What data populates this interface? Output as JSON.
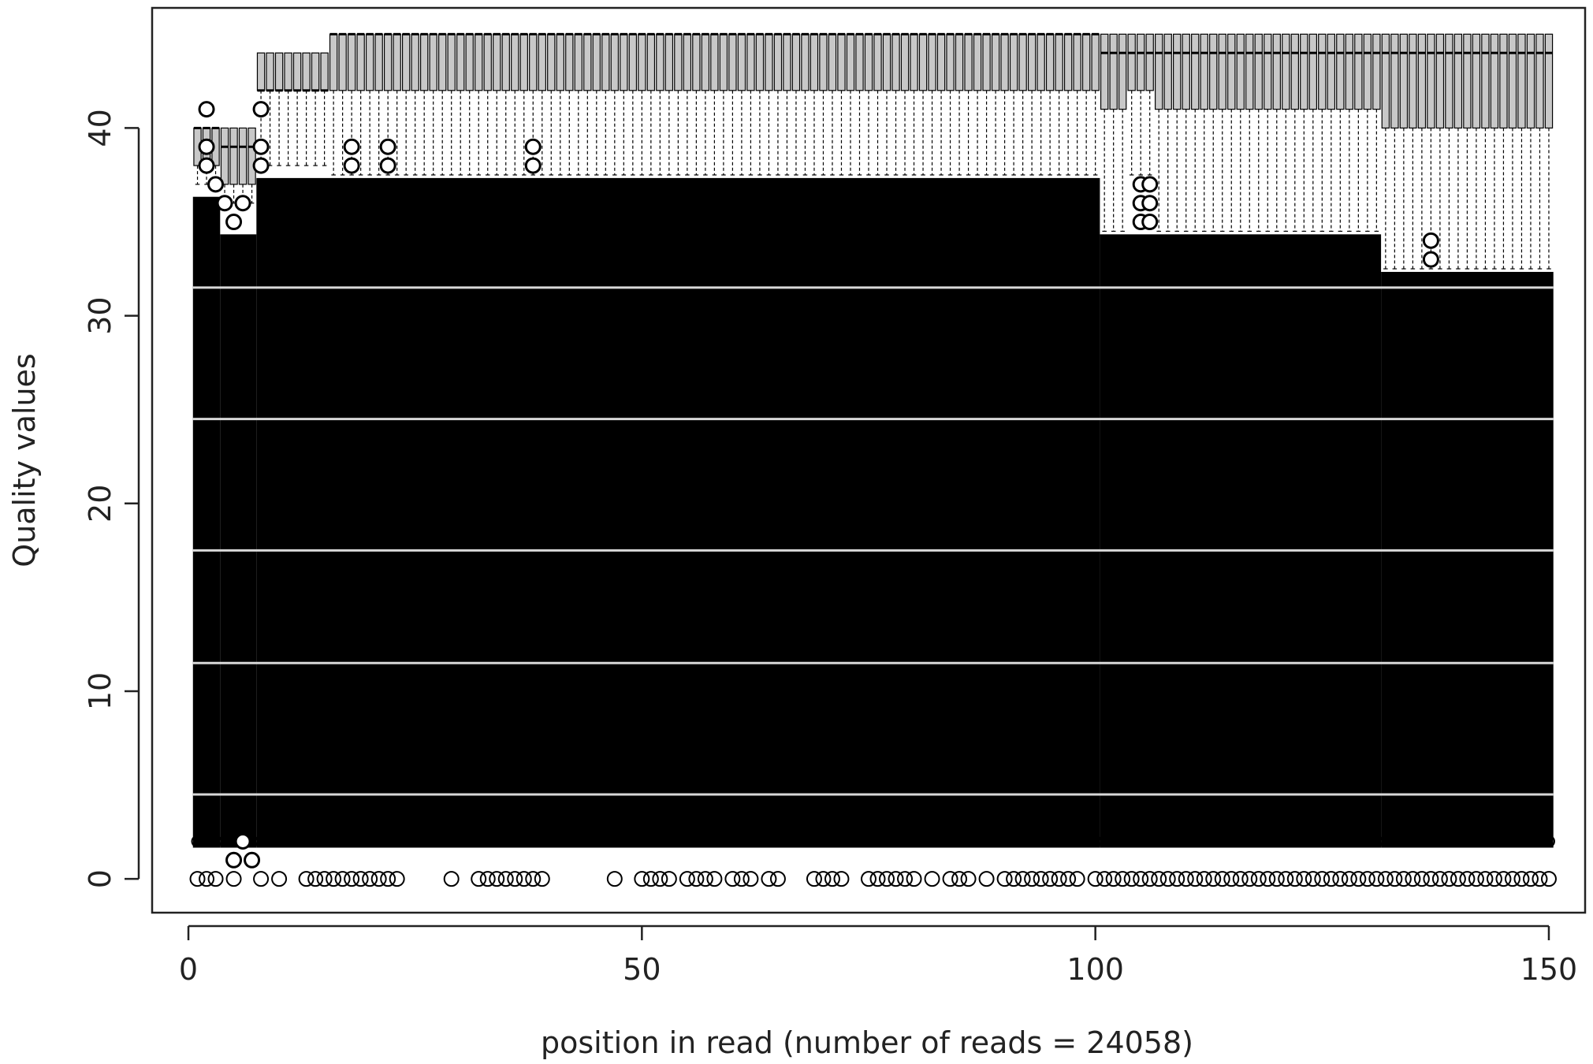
{
  "chart_data": {
    "type": "box",
    "title": "",
    "xlabel": "position in read (number of reads = 24058)",
    "ylabel": "Quality values",
    "xlim": [
      -4,
      154
    ],
    "ylim": [
      -1.8,
      46.4
    ],
    "x_ticks": [
      0,
      50,
      100,
      150
    ],
    "x_tick_labels": [
      "0",
      "50",
      "100",
      "150"
    ],
    "y_ticks": [
      0,
      10,
      20,
      30,
      40
    ],
    "y_tick_labels": [
      "0",
      "10",
      "20",
      "30",
      "40"
    ],
    "grid": false,
    "legend": "none",
    "n_reads": 24058,
    "positions": [
      1,
      150
    ],
    "segments": [
      {
        "from": 1,
        "to": 3,
        "q1": 38,
        "median": 40,
        "q3": 40,
        "upper_whisker": 41,
        "lower_whisker": 37
      },
      {
        "from": 4,
        "to": 7,
        "q1": 37,
        "median": 39,
        "q3": 40,
        "upper_whisker": 41,
        "lower_whisker": 36
      },
      {
        "from": 8,
        "to": 15,
        "q1": 42,
        "median": 42,
        "q3": 44,
        "upper_whisker": 44,
        "lower_whisker": 38
      },
      {
        "from": 16,
        "to": 100,
        "q1": 42,
        "median": 45,
        "q3": 45,
        "upper_whisker": 45,
        "lower_whisker": 37.5
      },
      {
        "from": 101,
        "to": 103,
        "q1": 41,
        "median": 44,
        "q3": 45,
        "upper_whisker": 45,
        "lower_whisker": 34.5
      },
      {
        "from": 104,
        "to": 106,
        "q1": 42,
        "median": 44,
        "q3": 45,
        "upper_whisker": 45,
        "lower_whisker": 37.5
      },
      {
        "from": 107,
        "to": 131,
        "q1": 41,
        "median": 44,
        "q3": 45,
        "upper_whisker": 45,
        "lower_whisker": 34.5
      },
      {
        "from": 132,
        "to": 150,
        "q1": 40,
        "median": 44,
        "q3": 45,
        "upper_whisker": 45,
        "lower_whisker": 32.5
      }
    ],
    "outlier_band": [
      {
        "from": 1,
        "to": 3,
        "min": 2,
        "max": 36
      },
      {
        "from": 4,
        "to": 7,
        "min": 2,
        "max": 34
      },
      {
        "from": 8,
        "to": 100,
        "min": 2,
        "max": 37
      },
      {
        "from": 101,
        "to": 131,
        "min": 2,
        "max": 34
      },
      {
        "from": 132,
        "to": 150,
        "min": 2,
        "max": 32
      }
    ],
    "sparse_outliers": [
      {
        "x": 2,
        "y": 41
      },
      {
        "x": 8,
        "y": 41
      },
      {
        "x": 2,
        "y": 39
      },
      {
        "x": 2,
        "y": 38
      },
      {
        "x": 8,
        "y": 39
      },
      {
        "x": 8,
        "y": 38
      },
      {
        "x": 18,
        "y": 39
      },
      {
        "x": 18,
        "y": 38
      },
      {
        "x": 22,
        "y": 39
      },
      {
        "x": 22,
        "y": 38
      },
      {
        "x": 38,
        "y": 39
      },
      {
        "x": 38,
        "y": 38
      },
      {
        "x": 105,
        "y": 37
      },
      {
        "x": 105,
        "y": 36
      },
      {
        "x": 105,
        "y": 35
      },
      {
        "x": 106,
        "y": 37
      },
      {
        "x": 106,
        "y": 36
      },
      {
        "x": 106,
        "y": 35
      },
      {
        "x": 137,
        "y": 34
      },
      {
        "x": 137,
        "y": 33
      },
      {
        "x": 3,
        "y": 37
      },
      {
        "x": 4,
        "y": 36
      },
      {
        "x": 5,
        "y": 35
      },
      {
        "x": 6,
        "y": 36
      },
      {
        "x": 5,
        "y": 1
      },
      {
        "x": 7,
        "y": 1
      },
      {
        "x": 6,
        "y": 2
      }
    ],
    "zero_outliers": [
      1,
      2,
      3,
      5,
      8,
      10,
      13,
      14,
      15,
      16,
      17,
      18,
      19,
      20,
      21,
      22,
      23,
      29,
      32,
      33,
      34,
      35,
      36,
      37,
      38,
      39,
      47,
      50,
      51,
      52,
      53,
      55,
      56,
      57,
      58,
      60,
      61,
      62,
      64,
      65,
      69,
      70,
      71,
      72,
      75,
      76,
      77,
      78,
      79,
      80,
      82,
      84,
      85,
      86,
      88,
      90,
      91,
      92,
      93,
      94,
      95,
      96,
      97,
      98,
      100,
      101,
      102,
      103,
      104,
      105,
      106,
      107,
      108,
      109,
      110,
      111,
      112,
      113,
      114,
      115,
      116,
      117,
      118,
      119,
      120,
      121,
      122,
      123,
      124,
      125,
      126,
      127,
      128,
      129,
      130,
      131,
      132,
      133,
      134,
      135,
      136,
      137,
      138,
      139,
      140,
      141,
      142,
      143,
      144,
      145,
      146,
      147,
      148,
      149,
      150
    ]
  }
}
